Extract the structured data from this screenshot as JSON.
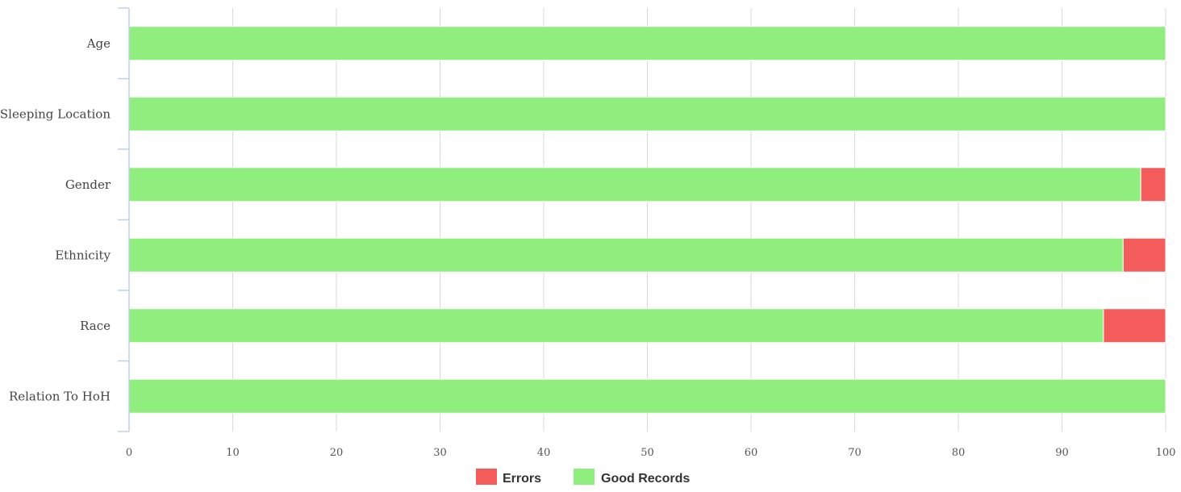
{
  "chart_data": {
    "type": "bar",
    "orientation": "horizontal",
    "stacked": true,
    "categories": [
      "Age",
      "Sleeping Location",
      "Gender",
      "Ethnicity",
      "Race",
      "Relation To HoH"
    ],
    "series": [
      {
        "name": "Good Records",
        "values": [
          100,
          100,
          97.6,
          95.9,
          94.0,
          100
        ],
        "color": "#90ee7e"
      },
      {
        "name": "Errors",
        "values": [
          0,
          0,
          2.4,
          4.1,
          6.0,
          0
        ],
        "color": "#f45b5b"
      }
    ],
    "legend": {
      "placement": "bottom-center",
      "order": [
        "Errors",
        "Good Records"
      ]
    },
    "xlim": [
      0,
      100
    ],
    "x_ticks": [
      0,
      10,
      20,
      30,
      40,
      50,
      60,
      70,
      80,
      90,
      100
    ],
    "grid": true,
    "colors": {
      "grid": "#d9d9d9",
      "axis": "#c0d0e0"
    }
  }
}
